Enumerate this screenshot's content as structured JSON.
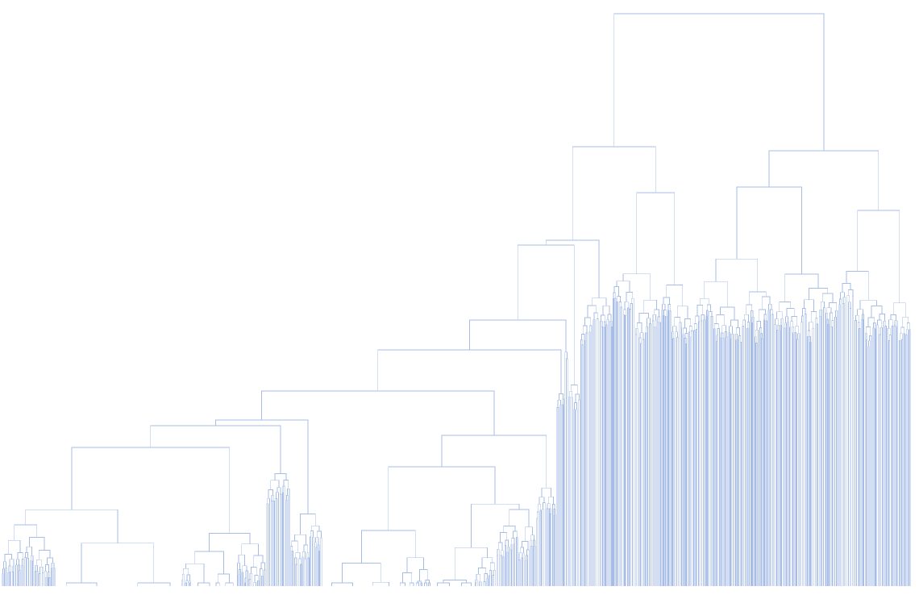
{
  "diagram": {
    "type": "dendrogram",
    "orientation": "top-down",
    "colors": {
      "link": "#a8bde6",
      "background": "#ffffff"
    }
  }
}
